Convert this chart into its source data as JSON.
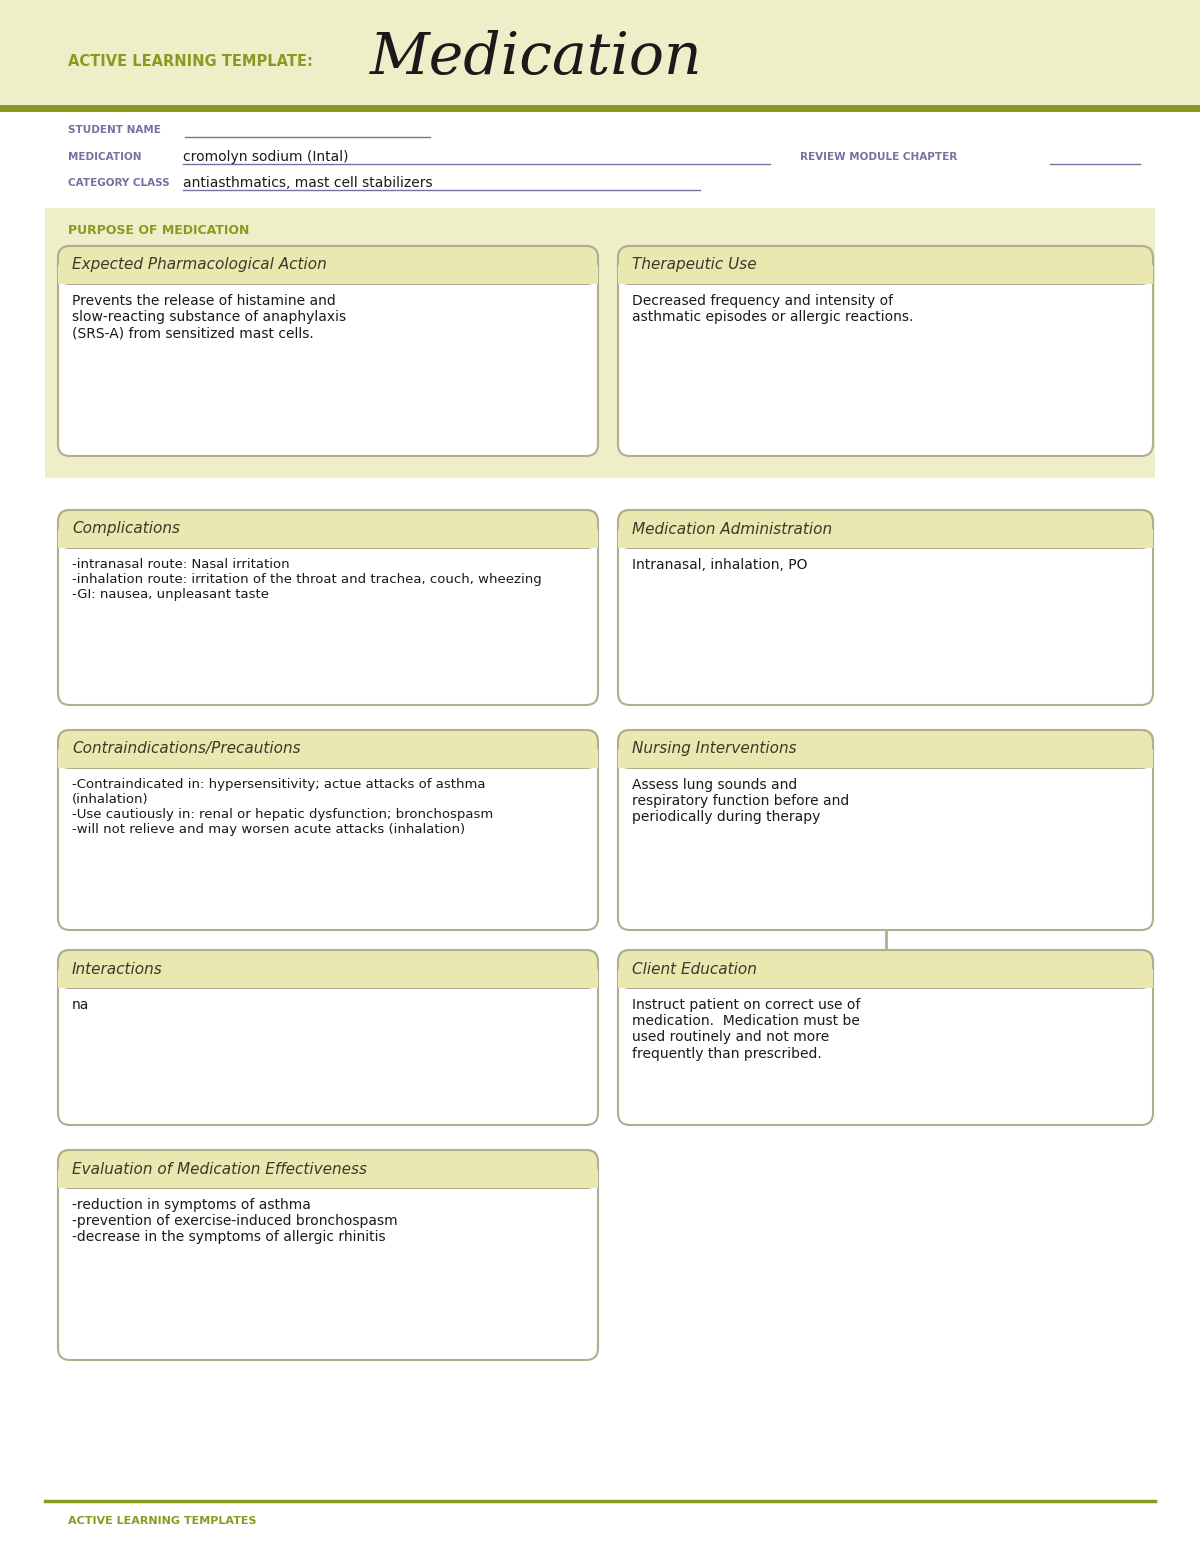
{
  "bg_color": "#eeeec8",
  "white": "#ffffff",
  "header_bg": "#e8e8b0",
  "box_border": "#b0b090",
  "olive_green": "#8a9a20",
  "purple_label": "#7b6ea0",
  "dark_text": "#1a1a1a",
  "gray_text": "#555555",
  "title_text": "Medication",
  "template_label": "ACTIVE LEARNING TEMPLATE:",
  "student_name_label": "STUDENT NAME",
  "medication_label": "MEDICATION",
  "medication_value": "cromolyn sodium (Intal)",
  "review_label": "REVIEW MODULE CHAPTER",
  "category_label": "CATEGORY CLASS",
  "category_value": "antiasthmatics, mast cell stabilizers",
  "purpose_label": "PURPOSE OF MEDICATION",
  "box1_title": "Expected Pharmacological Action",
  "box1_body": "Prevents the release of histamine and\nslow-reacting substance of anaphylaxis\n(SRS-A) from sensitized mast cells.",
  "box2_title": "Therapeutic Use",
  "box2_body": "Decreased frequency and intensity of\nasthmatic episodes or allergic reactions.",
  "box3_title": "Complications",
  "box3_body": "-intranasal route: Nasal irritation\n-inhalation route: irritation of the throat and trachea, couch, wheezing\n-GI: nausea, unpleasant taste",
  "box4_title": "Medication Administration",
  "box4_body": "Intranasal, inhalation, PO",
  "box5_title": "Contraindications/Precautions",
  "box5_body": "-Contraindicated in: hypersensitivity; actue attacks of asthma\n(inhalation)\n-Use cautiously in: renal or hepatic dysfunction; bronchospasm\n-will not relieve and may worsen acute attacks (inhalation)",
  "box6_title": "Nursing Interventions",
  "box6_body": "Assess lung sounds and\nrespiratory function before and\nperiodically during therapy",
  "box7_title": "Interactions",
  "box7_body": "na",
  "box8_title": "Client Education",
  "box8_body": "Instruct patient on correct use of\nmedication.  Medication must be\nused routinely and not more\nfrequently than prescribed.",
  "box9_title": "Evaluation of Medication Effectiveness",
  "box9_body": "-reduction in symptoms of asthma\n-prevention of exercise-induced bronchospasm\n-decrease in the symptoms of allergic rhinitis",
  "footer_text": "ACTIVE LEARNING TEMPLATES"
}
